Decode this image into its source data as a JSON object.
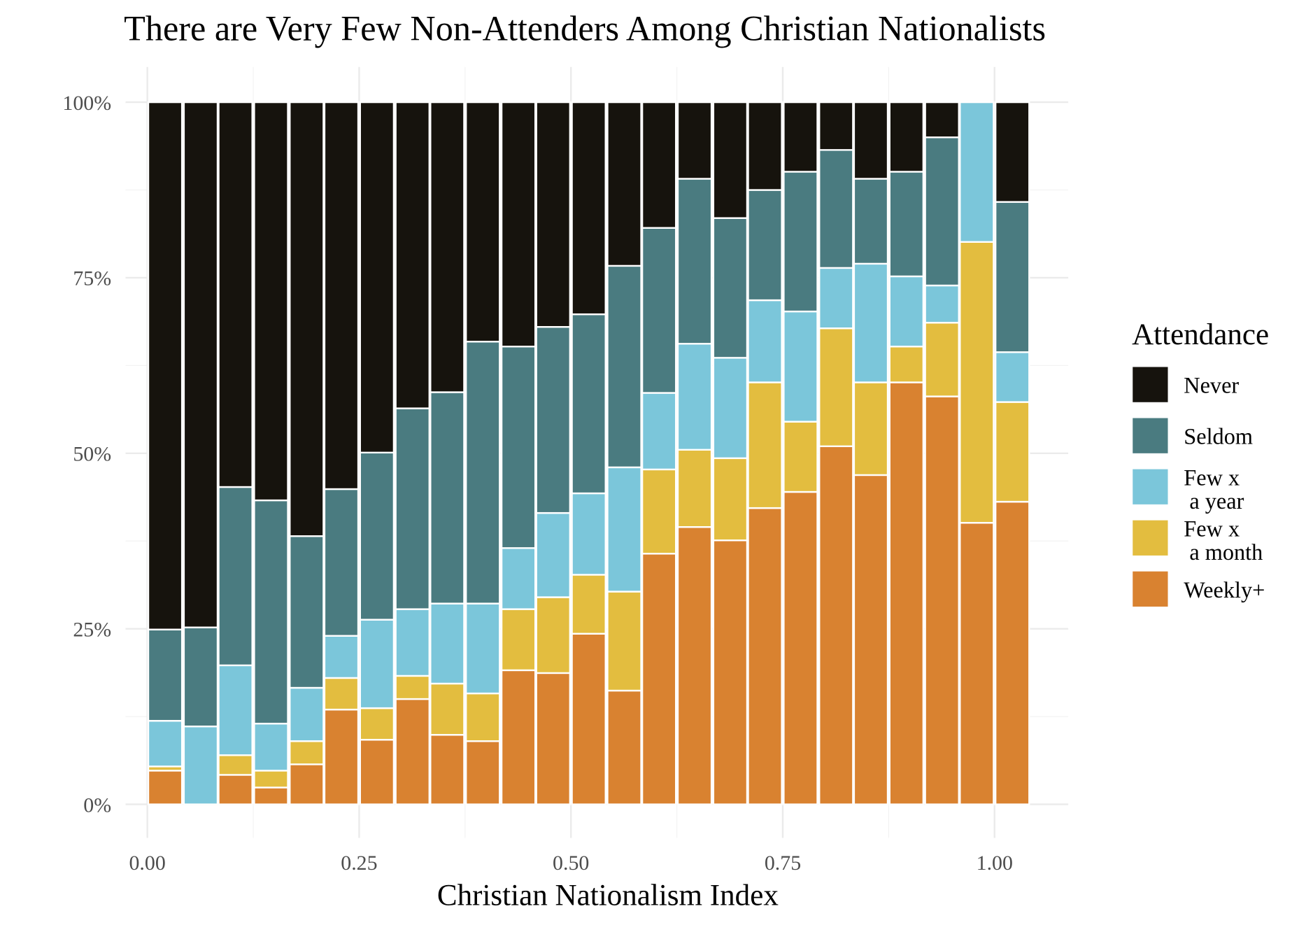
{
  "chart_data": {
    "type": "bar",
    "stacked": true,
    "title": "There are Very Few Non-Attenders Among Christian Nationalists",
    "xlabel": "Christian Nationalism Index",
    "ylabel": "",
    "xlim": [
      -0.05,
      1.12
    ],
    "ylim": [
      0,
      100
    ],
    "x_ticks": [
      0,
      0.25,
      0.5,
      0.75,
      1.0
    ],
    "x_tick_labels": [
      "0.00",
      "0.25",
      "0.50",
      "0.75",
      "1.00"
    ],
    "y_ticks": [
      0,
      25,
      50,
      75,
      100
    ],
    "y_tick_labels": [
      "0%",
      "25%",
      "50%",
      "75%",
      "100%"
    ],
    "grid": true,
    "bin_width": 0.0417,
    "x": [
      0.021,
      0.063,
      0.104,
      0.146,
      0.188,
      0.229,
      0.271,
      0.313,
      0.354,
      0.396,
      0.438,
      0.479,
      0.521,
      0.563,
      0.604,
      0.646,
      0.688,
      0.729,
      0.771,
      0.813,
      0.854,
      0.896,
      0.938,
      0.979,
      1.021
    ],
    "legend": {
      "title": "Attendance",
      "position": "right"
    },
    "series": [
      {
        "name": "Weekly+",
        "color": "#d98230",
        "values": [
          4.8,
          0,
          4.2,
          2.4,
          5.7,
          13.5,
          9.2,
          15.0,
          9.9,
          9.0,
          19.1,
          18.7,
          24.3,
          16.2,
          35.7,
          39.5,
          37.6,
          42.2,
          44.5,
          51.0,
          46.9,
          60.1,
          58.1,
          40.1,
          43.1
        ]
      },
      {
        "name": "Few x\n a month",
        "color": "#e3bd3f",
        "values": [
          0.6,
          0,
          2.8,
          2.4,
          3.3,
          4.5,
          4.5,
          3.3,
          7.3,
          6.8,
          8.7,
          10.8,
          8.4,
          14.1,
          12.0,
          11.0,
          11.7,
          17.9,
          10.0,
          16.8,
          13.2,
          5.1,
          10.5,
          40.0,
          14.2
        ]
      },
      {
        "name": "Few x\n a year",
        "color": "#7bc6da",
        "values": [
          6.5,
          11.1,
          12.8,
          6.7,
          7.6,
          6.0,
          12.6,
          9.5,
          11.4,
          12.8,
          8.7,
          12.0,
          11.6,
          17.7,
          10.9,
          15.1,
          14.3,
          11.7,
          15.7,
          8.6,
          16.9,
          10.0,
          5.3,
          19.9,
          7.1
        ]
      },
      {
        "name": "Seldom",
        "color": "#4a7b80",
        "values": [
          13.0,
          14.1,
          25.4,
          31.8,
          21.6,
          20.9,
          23.8,
          28.6,
          30.1,
          37.3,
          28.7,
          26.5,
          25.5,
          28.7,
          23.5,
          23.5,
          19.9,
          15.7,
          19.9,
          16.8,
          12.1,
          14.9,
          21.1,
          0,
          21.4
        ]
      },
      {
        "name": "Never",
        "color": "#16130d",
        "values": [
          75.1,
          74.8,
          54.8,
          56.7,
          61.8,
          55.1,
          49.9,
          43.6,
          41.3,
          34.1,
          34.8,
          32.0,
          30.2,
          23.3,
          17.9,
          10.9,
          16.5,
          12.5,
          9.9,
          6.8,
          10.9,
          9.9,
          5.0,
          0,
          14.2
        ]
      }
    ],
    "legend_labels": [
      "Never",
      "Seldom",
      "Few x",
      " a year",
      "Few x",
      " a month",
      "Weekly+"
    ]
  }
}
